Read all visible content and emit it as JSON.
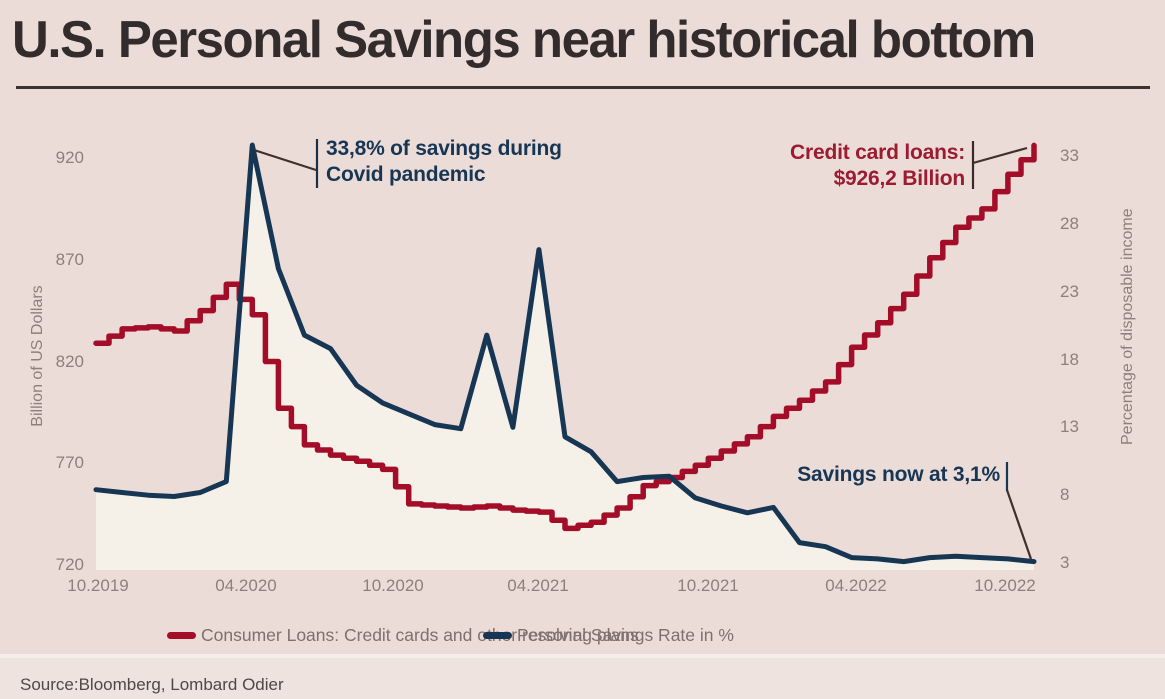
{
  "title": "U.S. Personal Savings near historical bottom",
  "source": "Source:Bloomberg, Lombard Odier",
  "annotations": {
    "covid_line1": "33,8% of savings during",
    "covid_line2": "Covid pandemic",
    "credit_line1": "Credit card loans:",
    "credit_line2": "$926,2 Billion",
    "savings_now": "Savings now at 3,1%"
  },
  "legend": [
    {
      "label": "Consumer Loans: Credit cards and other resolving plans",
      "color": "#a30d28"
    },
    {
      "label": "Personal Savings Rate in %",
      "color": "#163654"
    }
  ],
  "colors": {
    "background": "#ecdcd8",
    "consumer_loans_line": "#a30d28",
    "savings_rate_line": "#163654",
    "savings_area_fill": "#f6f1e8",
    "axis_text": "#8d807c",
    "title_text": "#332c2c",
    "pointer_line": "#40302b"
  },
  "chart_data": {
    "type": "line",
    "title": "U.S. Personal Savings near historical bottom",
    "categories": [
      "10.2019",
      "11.2019",
      "12.2019",
      "01.2020",
      "02.2020",
      "03.2020",
      "04.2020",
      "05.2020",
      "06.2020",
      "07.2020",
      "08.2020",
      "09.2020",
      "10.2020",
      "11.2020",
      "12.2020",
      "01.2021",
      "02.2021",
      "03.2021",
      "04.2021",
      "05.2021",
      "06.2021",
      "07.2021",
      "08.2021",
      "09.2021",
      "10.2021",
      "11.2021",
      "12.2021",
      "01.2022",
      "02.2022",
      "03.2022",
      "04.2022",
      "05.2022",
      "06.2022",
      "07.2022",
      "08.2022",
      "09.2022",
      "10.2022"
    ],
    "series": [
      {
        "name": "Consumer Loans: Credit cards and other resolving plans",
        "axis": "left",
        "unit": "Billion of US Dollars",
        "color": "#a30d28",
        "style": "step",
        "values": [
          829,
          836,
          837,
          835,
          845,
          858,
          843,
          797,
          779,
          774,
          771,
          767,
          750,
          749,
          748,
          749,
          747,
          746,
          738,
          741,
          748,
          759,
          763,
          769,
          776,
          783,
          793,
          801,
          810,
          827,
          839,
          853,
          871,
          886,
          895,
          912,
          926.2
        ]
      },
      {
        "name": "Personal Savings Rate in %",
        "axis": "right",
        "unit": "Percentage of disposable income",
        "color": "#163654",
        "style": "line",
        "area_fill": "#f6f1e8",
        "values": [
          8.4,
          8.2,
          8.0,
          7.9,
          8.2,
          9.0,
          33.8,
          24.7,
          19.8,
          18.8,
          16.1,
          14.8,
          14.0,
          13.2,
          12.9,
          19.8,
          13.0,
          26.1,
          12.3,
          11.2,
          9.0,
          9.3,
          9.4,
          7.8,
          7.2,
          6.7,
          7.1,
          4.5,
          4.2,
          3.4,
          3.3,
          3.1,
          3.4,
          3.5,
          3.4,
          3.3,
          3.1
        ]
      }
    ],
    "left_axis": {
      "label": "Billion of US Dollars",
      "ticks": [
        920,
        870,
        820,
        770,
        720
      ],
      "range": [
        720,
        920
      ]
    },
    "right_axis": {
      "label": "Percentage of disposable income",
      "ticks": [
        33,
        28,
        23,
        18,
        13,
        8,
        3
      ],
      "range": [
        3,
        33
      ]
    },
    "x_ticks": [
      "10.2019",
      "04.2020",
      "10.2020",
      "04.2021",
      "10.2021",
      "04.2022",
      "10.2022"
    ],
    "grid": false,
    "legend_position": "bottom",
    "annotated_points": [
      {
        "series": "Personal Savings Rate in %",
        "category": "04.2020",
        "value": 33.8
      },
      {
        "series": "Personal Savings Rate in %",
        "category": "10.2022",
        "value": 3.1
      },
      {
        "series": "Consumer Loans: Credit cards and other resolving plans",
        "category": "10.2022",
        "value": 926.2
      }
    ]
  }
}
